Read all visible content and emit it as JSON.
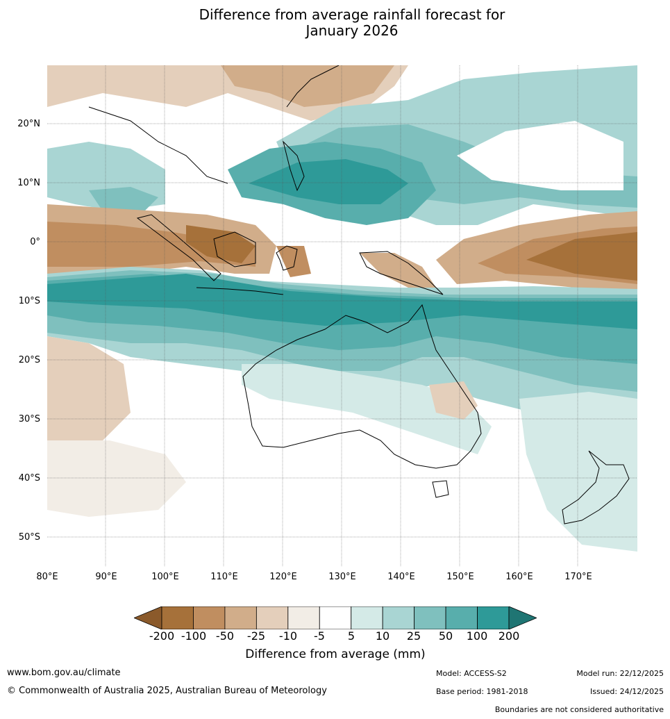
{
  "title": {
    "line1": "Difference from average rainfall forecast for",
    "line2": "January 2026"
  },
  "map": {
    "lat_labels": [
      "20°N",
      "10°N",
      "0°",
      "10°S",
      "20°S",
      "30°S",
      "40°S",
      "50°S"
    ],
    "lon_labels": [
      "80°E",
      "90°E",
      "100°E",
      "110°E",
      "120°E",
      "130°E",
      "140°E",
      "150°E",
      "160°E",
      "170°E"
    ]
  },
  "colorbar": {
    "ticks": [
      "-200",
      "-100",
      "-50",
      "-25",
      "-10",
      "-5",
      "5",
      "10",
      "25",
      "50",
      "100",
      "200"
    ],
    "colors": [
      "#a6713a",
      "#c08e60",
      "#d1ad8a",
      "#e4cfbb",
      "#f2ede6",
      "#ffffff",
      "#d4eae7",
      "#a9d5d3",
      "#7fc0be",
      "#58aeac",
      "#2e9a98"
    ],
    "low_extend_color": "#8b5a2b",
    "high_extend_color": "#1f7573",
    "label": "Difference from average (mm)"
  },
  "footer": {
    "website": "www.bom.gov.au/climate",
    "copyright": "© Commonwealth of Australia 2025, Australian Bureau of Meteorology",
    "model": "Model: ACCESS-S2",
    "base_period": "Base period: 1981-2018",
    "model_run": "Model run: 22/12/2025",
    "issued": "Issued: 24/12/2025",
    "disclaimer": "Boundaries are not considered authoritative"
  }
}
